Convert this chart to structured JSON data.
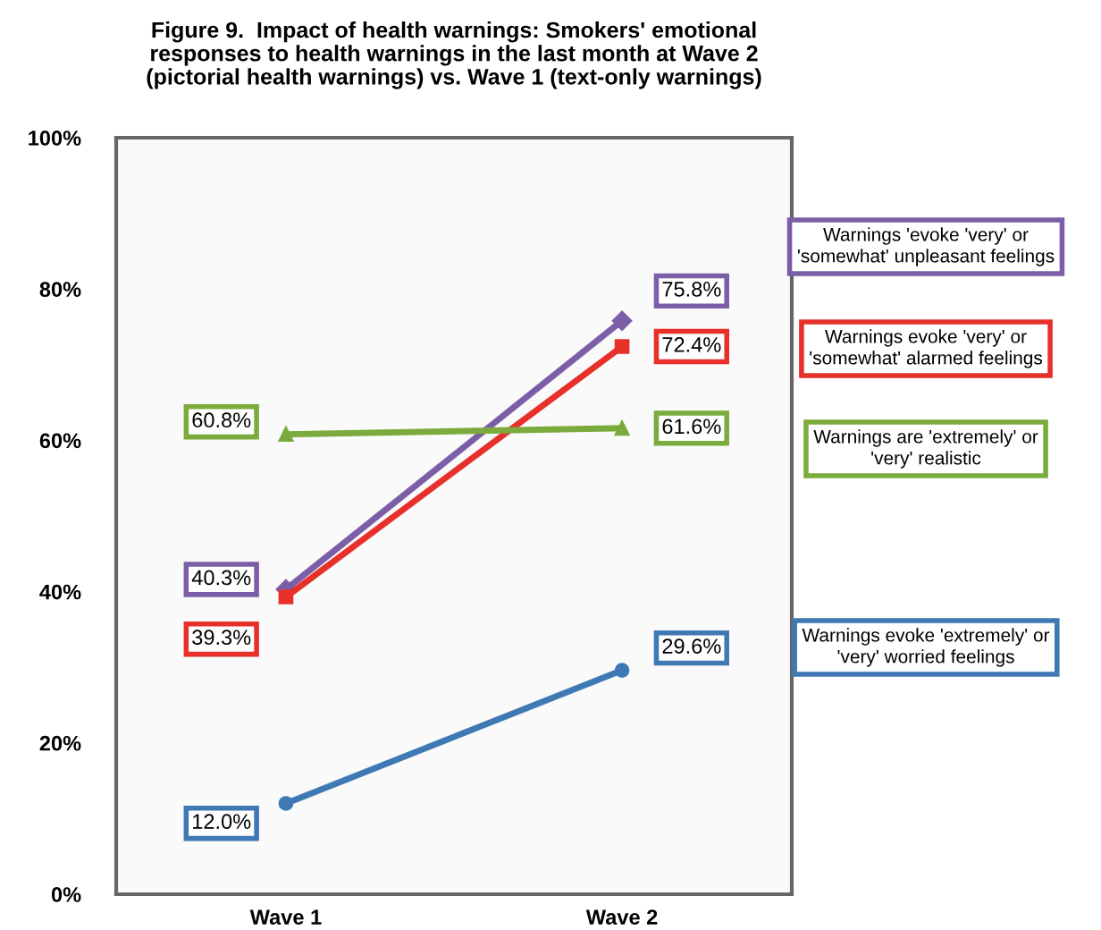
{
  "chart_data": {
    "type": "line",
    "title": "Figure 9.  Impact of health warnings: Smokers' emotional\nresponses to health warnings in the last month at Wave 2\n(pictorial health warnings) vs. Wave 1 (text-only warnings)",
    "categories": [
      "Wave 1",
      "Wave 2"
    ],
    "ylim": [
      0,
      100
    ],
    "yticks": [
      {
        "value": 0,
        "label": "0%"
      },
      {
        "value": 20,
        "label": "20%"
      },
      {
        "value": 40,
        "label": "40%"
      },
      {
        "value": 60,
        "label": "60%"
      },
      {
        "value": 80,
        "label": "80%"
      },
      {
        "value": 100,
        "label": "100%"
      }
    ],
    "grid": false,
    "legend": false,
    "series": [
      {
        "name": "Warnings 'evoke 'very' or\n'somewhat' unpleasant feelings",
        "color": "#7b5ea7",
        "marker": "diamond",
        "values": [
          40.3,
          75.8
        ],
        "value_labels": [
          "40.3%",
          "75.8%"
        ]
      },
      {
        "name": "Warnings evoke 'very' or\n'somewhat' alarmed feelings",
        "color": "#e8302a",
        "marker": "square",
        "values": [
          39.3,
          72.4
        ],
        "value_labels": [
          "39.3%",
          "72.4%"
        ]
      },
      {
        "name": "Warnings are 'extremely' or\n'very' realistic",
        "color": "#7aab3c",
        "marker": "triangle",
        "values": [
          60.8,
          61.6
        ],
        "value_labels": [
          "60.8%",
          "61.6%"
        ]
      },
      {
        "name": "Warnings evoke 'extremely' or\n'very' worried feelings",
        "color": "#3f79b4",
        "marker": "circle",
        "values": [
          12.0,
          29.6
        ],
        "value_labels": [
          "12.0%",
          "29.6%"
        ]
      }
    ]
  }
}
